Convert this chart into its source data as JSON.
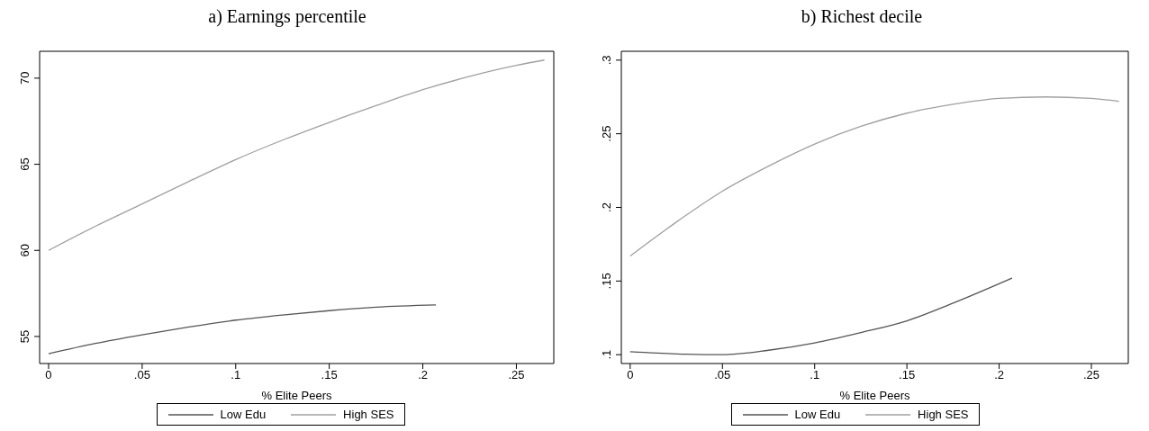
{
  "chart_data": [
    {
      "type": "line",
      "title": "a) Earnings percentile",
      "xlabel": "% Elite Peers",
      "series": [
        {
          "name": "Low Edu",
          "color": "#555555",
          "x": [
            0,
            0.025,
            0.05,
            0.075,
            0.1,
            0.125,
            0.15,
            0.175,
            0.207
          ],
          "values": [
            54.0,
            54.6,
            55.1,
            55.55,
            55.95,
            56.25,
            56.5,
            56.7,
            56.83
          ]
        },
        {
          "name": "High SES",
          "color": "#a0a0a0",
          "x": [
            0,
            0.025,
            0.05,
            0.075,
            0.1,
            0.125,
            0.15,
            0.175,
            0.2,
            0.225,
            0.25,
            0.265
          ],
          "values": [
            60.0,
            61.4,
            62.7,
            64.0,
            65.27,
            66.4,
            67.43,
            68.4,
            69.33,
            70.1,
            70.74,
            71.05
          ]
        }
      ],
      "xlim": [
        -0.0048,
        0.27
      ],
      "xticks": [
        0,
        {
          "value": 0.05,
          "label": ".05"
        },
        {
          "value": 0.1,
          "label": ".1"
        },
        {
          "value": 0.15,
          "label": ".15"
        },
        {
          "value": 0.2,
          "label": ".2"
        },
        {
          "value": 0.25,
          "label": ".25"
        }
      ],
      "ylim": [
        53.43,
        71.56
      ],
      "yticks": [
        55,
        60,
        65,
        70
      ],
      "grid": false,
      "legend": "bottom",
      "marker": "none",
      "line_style": "solid"
    },
    {
      "type": "line",
      "title": "b) Richest decile",
      "xlabel": "% Elite Peers",
      "series": [
        {
          "name": "Low Edu",
          "color": "#555555",
          "x": [
            0,
            0.025,
            0.05,
            0.075,
            0.1,
            0.125,
            0.15,
            0.175,
            0.207
          ],
          "values": [
            0.102,
            0.1005,
            0.1,
            0.103,
            0.108,
            0.115,
            0.123,
            0.135,
            0.152
          ]
        },
        {
          "name": "High SES",
          "color": "#a0a0a0",
          "x": [
            0,
            0.025,
            0.05,
            0.075,
            0.1,
            0.125,
            0.15,
            0.175,
            0.2,
            0.225,
            0.25,
            0.265
          ],
          "values": [
            0.167,
            0.19,
            0.211,
            0.228,
            0.243,
            0.255,
            0.264,
            0.27,
            0.274,
            0.275,
            0.274,
            0.272
          ]
        }
      ],
      "xlim": [
        -0.0048,
        0.27
      ],
      "xticks": [
        0,
        {
          "value": 0.05,
          "label": ".05"
        },
        {
          "value": 0.1,
          "label": ".1"
        },
        {
          "value": 0.15,
          "label": ".15"
        },
        {
          "value": 0.2,
          "label": ".2"
        },
        {
          "value": 0.25,
          "label": ".25"
        }
      ],
      "ylim": [
        0.094,
        0.306
      ],
      "yticks": [
        {
          "value": 0.1,
          "label": ".1"
        },
        {
          "value": 0.15,
          "label": ".15"
        },
        {
          "value": 0.2,
          "label": ".2"
        },
        {
          "value": 0.25,
          "label": ".25"
        },
        {
          "value": 0.3,
          "label": ".3"
        }
      ],
      "grid": false,
      "legend": "bottom",
      "marker": "none",
      "line_style": "solid"
    }
  ]
}
